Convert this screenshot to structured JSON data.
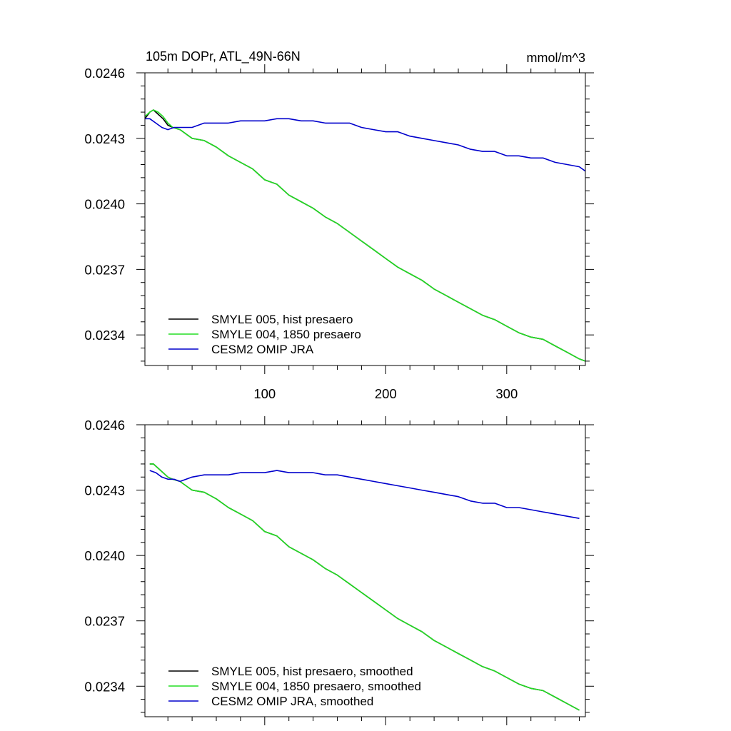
{
  "chart_data": [
    {
      "type": "line",
      "title": "105m DOPr, ATL_49N-66N",
      "units": "mmol/m^3",
      "xlabel": "",
      "ylabel": "",
      "xlim": [
        1,
        365
      ],
      "ylim": [
        0.02326,
        0.0246
      ],
      "xticks": [
        100,
        200,
        300
      ],
      "xtick_labels": [
        "100",
        "200",
        "300"
      ],
      "yticks": [
        0.0234,
        0.0237,
        0.024,
        0.0243,
        0.0246
      ],
      "ytick_labels": [
        "0.0234",
        "0.0237",
        "0.0240",
        "0.0243",
        "0.0246"
      ],
      "grid": false,
      "legend_position": "bottom-left",
      "series": [
        {
          "name": "SMYLE 005, hist presaero",
          "color": "#000000",
          "x": [
            1,
            5,
            8,
            12,
            16,
            20,
            24,
            30,
            35,
            40,
            50,
            60,
            70,
            80,
            90,
            100,
            110,
            120,
            130,
            140,
            150,
            160,
            170,
            180,
            190,
            200,
            210,
            220,
            230,
            240,
            250,
            260,
            270,
            280,
            290,
            300,
            310,
            320,
            330,
            340,
            350,
            360,
            365
          ],
          "y": [
            0.02439,
            0.02442,
            0.02443,
            0.02441,
            0.02439,
            0.02436,
            0.02435,
            0.02434,
            0.02432,
            0.0243,
            0.02429,
            0.02426,
            0.02422,
            0.02419,
            0.02416,
            0.02411,
            0.02409,
            0.02404,
            0.02401,
            0.02398,
            0.02394,
            0.02391,
            0.02387,
            0.02383,
            0.02379,
            0.02375,
            0.02371,
            0.02368,
            0.02365,
            0.02361,
            0.02358,
            0.02355,
            0.02352,
            0.02349,
            0.02347,
            0.02344,
            0.02341,
            0.02339,
            0.02338,
            0.02335,
            0.02332,
            0.02329,
            0.02328
          ]
        },
        {
          "name": "SMYLE 004, 1850 presaero",
          "color": "#22dd22",
          "x": [
            1,
            5,
            8,
            12,
            16,
            20,
            24,
            30,
            35,
            40,
            50,
            60,
            70,
            80,
            90,
            100,
            110,
            120,
            130,
            140,
            150,
            160,
            170,
            180,
            190,
            200,
            210,
            220,
            230,
            240,
            250,
            260,
            270,
            280,
            290,
            300,
            310,
            320,
            330,
            340,
            350,
            360,
            365
          ],
          "y": [
            0.0244,
            0.02442,
            0.02443,
            0.02442,
            0.0244,
            0.02437,
            0.02435,
            0.02434,
            0.02432,
            0.0243,
            0.02429,
            0.02426,
            0.02422,
            0.02419,
            0.02416,
            0.02411,
            0.02409,
            0.02404,
            0.02401,
            0.02398,
            0.02394,
            0.02391,
            0.02387,
            0.02383,
            0.02379,
            0.02375,
            0.02371,
            0.02368,
            0.02365,
            0.02361,
            0.02358,
            0.02355,
            0.02352,
            0.02349,
            0.02347,
            0.02344,
            0.02341,
            0.02339,
            0.02338,
            0.02335,
            0.02332,
            0.02329,
            0.02328
          ]
        },
        {
          "name": "CESM2 OMIP JRA",
          "color": "#0000cc",
          "x": [
            1,
            5,
            10,
            15,
            20,
            25,
            30,
            40,
            50,
            60,
            70,
            80,
            90,
            100,
            110,
            120,
            130,
            140,
            150,
            160,
            170,
            180,
            190,
            200,
            210,
            220,
            230,
            240,
            250,
            260,
            270,
            280,
            290,
            300,
            310,
            320,
            330,
            340,
            350,
            360,
            365
          ],
          "y": [
            0.02439,
            0.02439,
            0.02437,
            0.02435,
            0.02434,
            0.02435,
            0.02435,
            0.02435,
            0.02437,
            0.02437,
            0.02437,
            0.02438,
            0.02438,
            0.02438,
            0.02439,
            0.02439,
            0.02438,
            0.02438,
            0.02437,
            0.02437,
            0.02437,
            0.02435,
            0.02434,
            0.02433,
            0.02433,
            0.02431,
            0.0243,
            0.02429,
            0.02428,
            0.02427,
            0.02425,
            0.02424,
            0.02424,
            0.02422,
            0.02422,
            0.02421,
            0.02421,
            0.02419,
            0.02418,
            0.02417,
            0.02415
          ]
        }
      ]
    },
    {
      "type": "line",
      "title": "",
      "xlabel": "",
      "ylabel": "",
      "xlim": [
        1,
        365
      ],
      "ylim": [
        0.02326,
        0.0246
      ],
      "xticks": [
        100,
        200,
        300
      ],
      "yticks": [
        0.0234,
        0.0237,
        0.024,
        0.0243,
        0.0246
      ],
      "ytick_labels": [
        "0.0234",
        "0.0237",
        "0.0240",
        "0.0243",
        "0.0246"
      ],
      "grid": false,
      "legend_position": "bottom-left",
      "series": [
        {
          "name": "SMYLE 005, hist presaero, smoothed",
          "color": "#000000",
          "x": [
            5,
            8,
            12,
            16,
            20,
            24,
            30,
            35,
            40,
            50,
            60,
            70,
            80,
            90,
            100,
            110,
            120,
            130,
            140,
            150,
            160,
            170,
            180,
            190,
            200,
            210,
            220,
            230,
            240,
            250,
            260,
            270,
            280,
            290,
            300,
            310,
            320,
            330,
            340,
            350,
            360
          ],
          "y": [
            0.02442,
            0.02442,
            0.0244,
            0.02438,
            0.02436,
            0.02435,
            0.02434,
            0.02432,
            0.0243,
            0.02429,
            0.02426,
            0.02422,
            0.02419,
            0.02416,
            0.02411,
            0.02409,
            0.02404,
            0.02401,
            0.02398,
            0.02394,
            0.02391,
            0.02387,
            0.02383,
            0.02379,
            0.02375,
            0.02371,
            0.02368,
            0.02365,
            0.02361,
            0.02358,
            0.02355,
            0.02352,
            0.02349,
            0.02347,
            0.02344,
            0.02341,
            0.02339,
            0.02338,
            0.02335,
            0.02332,
            0.02329
          ]
        },
        {
          "name": "SMYLE 004, 1850 presaero, smoothed",
          "color": "#22dd22",
          "x": [
            5,
            8,
            12,
            16,
            20,
            24,
            30,
            35,
            40,
            50,
            60,
            70,
            80,
            90,
            100,
            110,
            120,
            130,
            140,
            150,
            160,
            170,
            180,
            190,
            200,
            210,
            220,
            230,
            240,
            250,
            260,
            270,
            280,
            290,
            300,
            310,
            320,
            330,
            340,
            350,
            360
          ],
          "y": [
            0.02442,
            0.02442,
            0.0244,
            0.02438,
            0.02436,
            0.02435,
            0.02434,
            0.02432,
            0.0243,
            0.02429,
            0.02426,
            0.02422,
            0.02419,
            0.02416,
            0.02411,
            0.02409,
            0.02404,
            0.02401,
            0.02398,
            0.02394,
            0.02391,
            0.02387,
            0.02383,
            0.02379,
            0.02375,
            0.02371,
            0.02368,
            0.02365,
            0.02361,
            0.02358,
            0.02355,
            0.02352,
            0.02349,
            0.02347,
            0.02344,
            0.02341,
            0.02339,
            0.02338,
            0.02335,
            0.02332,
            0.02329
          ]
        },
        {
          "name": "CESM2 OMIP JRA, smoothed",
          "color": "#0000cc",
          "x": [
            5,
            10,
            15,
            20,
            25,
            30,
            40,
            50,
            60,
            70,
            80,
            90,
            100,
            110,
            120,
            130,
            140,
            150,
            160,
            170,
            180,
            190,
            200,
            210,
            220,
            230,
            240,
            250,
            260,
            270,
            280,
            290,
            300,
            310,
            320,
            330,
            340,
            350,
            360
          ],
          "y": [
            0.02439,
            0.02438,
            0.02436,
            0.02435,
            0.02435,
            0.02434,
            0.02436,
            0.02437,
            0.02437,
            0.02437,
            0.02438,
            0.02438,
            0.02438,
            0.02439,
            0.02438,
            0.02438,
            0.02438,
            0.02437,
            0.02437,
            0.02436,
            0.02435,
            0.02434,
            0.02433,
            0.02432,
            0.02431,
            0.0243,
            0.02429,
            0.02428,
            0.02427,
            0.02425,
            0.02424,
            0.02424,
            0.02422,
            0.02422,
            0.02421,
            0.0242,
            0.02419,
            0.02418,
            0.02417
          ]
        }
      ]
    }
  ]
}
